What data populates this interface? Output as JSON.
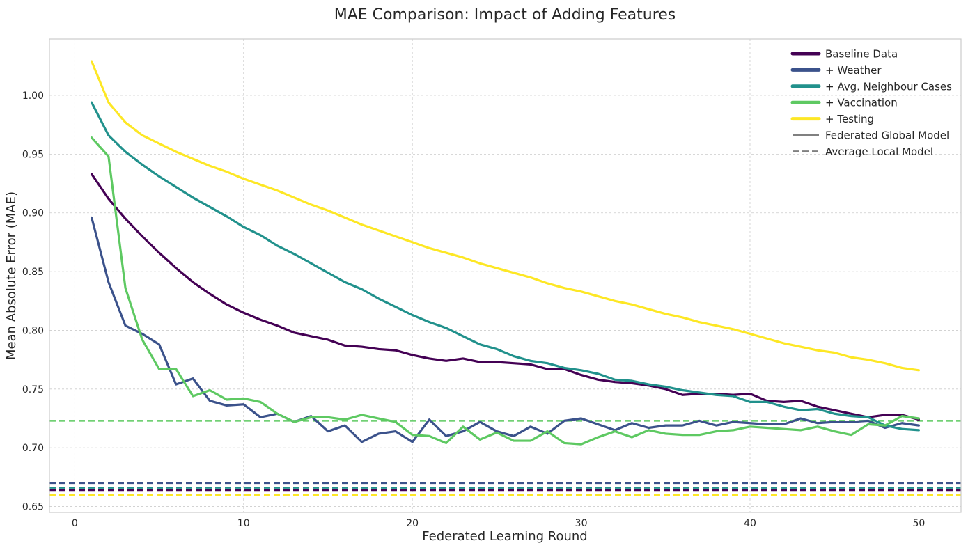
{
  "chart_data": {
    "type": "line",
    "title": "MAE Comparison: Impact of Adding Features",
    "xlabel": "Federated Learning Round",
    "ylabel": "Mean Absolute Error (MAE)",
    "xlim": [
      -1.5,
      52.5
    ],
    "ylim": [
      0.645,
      1.048
    ],
    "xticks": [
      0,
      10,
      20,
      30,
      40,
      50
    ],
    "yticks": [
      0.65,
      0.7,
      0.75,
      0.8,
      0.85,
      0.9,
      0.95,
      1.0
    ],
    "ytick_labels": [
      "0.65",
      "0.70",
      "0.75",
      "0.80",
      "0.85",
      "0.90",
      "0.95",
      "1.00"
    ],
    "grid": true,
    "legend_position": "top-right",
    "x": [
      1,
      2,
      3,
      4,
      5,
      6,
      7,
      8,
      9,
      10,
      11,
      12,
      13,
      14,
      15,
      16,
      17,
      18,
      19,
      20,
      21,
      22,
      23,
      24,
      25,
      26,
      27,
      28,
      29,
      30,
      31,
      32,
      33,
      34,
      35,
      36,
      37,
      38,
      39,
      40,
      41,
      42,
      43,
      44,
      45,
      46,
      47,
      48,
      49,
      50
    ],
    "series": [
      {
        "name": "Baseline Data",
        "color": "#440154",
        "values": [
          0.933,
          0.912,
          0.895,
          0.88,
          0.866,
          0.853,
          0.841,
          0.831,
          0.822,
          0.815,
          0.809,
          0.804,
          0.798,
          0.795,
          0.792,
          0.787,
          0.786,
          0.784,
          0.783,
          0.779,
          0.776,
          0.774,
          0.776,
          0.773,
          0.773,
          0.772,
          0.771,
          0.767,
          0.767,
          0.762,
          0.758,
          0.756,
          0.755,
          0.753,
          0.75,
          0.745,
          0.746,
          0.746,
          0.745,
          0.746,
          0.74,
          0.739,
          0.74,
          0.735,
          0.732,
          0.729,
          0.726,
          0.728,
          0.728,
          0.724
        ],
        "baseline": 0.664
      },
      {
        "name": "+ Weather",
        "color": "#3b528b",
        "values": [
          0.896,
          0.841,
          0.804,
          0.797,
          0.788,
          0.754,
          0.759,
          0.74,
          0.736,
          0.737,
          0.726,
          0.729,
          0.722,
          0.727,
          0.714,
          0.719,
          0.705,
          0.712,
          0.714,
          0.705,
          0.724,
          0.71,
          0.714,
          0.722,
          0.714,
          0.71,
          0.718,
          0.712,
          0.723,
          0.725,
          0.72,
          0.715,
          0.721,
          0.717,
          0.719,
          0.719,
          0.723,
          0.719,
          0.722,
          0.721,
          0.72,
          0.72,
          0.725,
          0.721,
          0.722,
          0.722,
          0.723,
          0.717,
          0.721,
          0.719
        ],
        "baseline": 0.67
      },
      {
        "name": "+ Avg. Neighbour Cases",
        "color": "#21918c",
        "values": [
          0.994,
          0.966,
          0.952,
          0.941,
          0.931,
          0.922,
          0.913,
          0.905,
          0.897,
          0.888,
          0.881,
          0.872,
          0.865,
          0.857,
          0.849,
          0.841,
          0.835,
          0.827,
          0.82,
          0.813,
          0.807,
          0.802,
          0.795,
          0.788,
          0.784,
          0.778,
          0.774,
          0.772,
          0.768,
          0.766,
          0.763,
          0.758,
          0.757,
          0.754,
          0.752,
          0.749,
          0.747,
          0.745,
          0.744,
          0.739,
          0.739,
          0.735,
          0.732,
          0.733,
          0.729,
          0.727,
          0.726,
          0.719,
          0.716,
          0.715
        ],
        "baseline": 0.666
      },
      {
        "name": "+ Vaccination",
        "color": "#5ec962",
        "values": [
          0.964,
          0.948,
          0.836,
          0.792,
          0.767,
          0.767,
          0.744,
          0.749,
          0.741,
          0.742,
          0.739,
          0.729,
          0.722,
          0.726,
          0.726,
          0.724,
          0.728,
          0.725,
          0.722,
          0.711,
          0.71,
          0.704,
          0.718,
          0.707,
          0.713,
          0.706,
          0.706,
          0.714,
          0.704,
          0.703,
          0.709,
          0.714,
          0.709,
          0.715,
          0.712,
          0.711,
          0.711,
          0.714,
          0.715,
          0.718,
          0.717,
          0.716,
          0.715,
          0.718,
          0.714,
          0.711,
          0.72,
          0.719,
          0.727,
          0.725
        ],
        "baseline": 0.723
      },
      {
        "name": "+ Testing",
        "color": "#fde725",
        "values": [
          1.029,
          0.994,
          0.977,
          0.966,
          0.959,
          0.952,
          0.946,
          0.94,
          0.935,
          0.929,
          0.924,
          0.919,
          0.913,
          0.907,
          0.902,
          0.896,
          0.89,
          0.885,
          0.88,
          0.875,
          0.87,
          0.866,
          0.862,
          0.857,
          0.853,
          0.849,
          0.845,
          0.84,
          0.836,
          0.833,
          0.829,
          0.825,
          0.822,
          0.818,
          0.814,
          0.811,
          0.807,
          0.804,
          0.801,
          0.797,
          0.793,
          0.789,
          0.786,
          0.783,
          0.781,
          0.777,
          0.775,
          0.772,
          0.768,
          0.766
        ],
        "baseline": 0.66
      }
    ],
    "style_legend": [
      {
        "label": "Federated Global Model",
        "style": "solid"
      },
      {
        "label": "Average Local Model",
        "style": "dashed"
      }
    ]
  }
}
